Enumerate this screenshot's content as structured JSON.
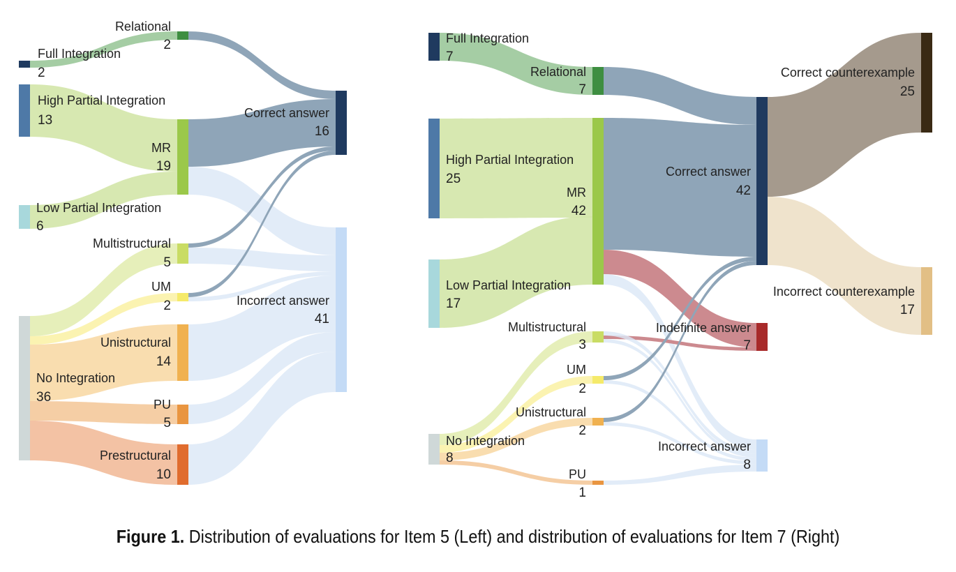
{
  "caption": {
    "prefix": "Figure 1.",
    "text": " Distribution of evaluations for Item 5 (Left) and distribution of evaluations for Item 7 (Right)"
  },
  "left": {
    "nodes": [
      {
        "id": "full",
        "label": "Full Integration",
        "value": "2",
        "color": "#1f3a5f"
      },
      {
        "id": "high",
        "label": "High Partial Integration",
        "value": "13",
        "color": "#4e79a7"
      },
      {
        "id": "low",
        "label": "Low Partial Integration",
        "value": "6",
        "color": "#a8d8dc"
      },
      {
        "id": "none",
        "label": "No Integration",
        "value": "36",
        "color": "#cfd8d8"
      },
      {
        "id": "relational",
        "label": "Relational",
        "value": "2",
        "color": "#3e8e41"
      },
      {
        "id": "mr",
        "label": "MR",
        "value": "19",
        "color": "#9bc84a"
      },
      {
        "id": "multi",
        "label": "Multistructural",
        "value": "5",
        "color": "#c9dc64"
      },
      {
        "id": "um",
        "label": "UM",
        "value": "2",
        "color": "#f5ea6a"
      },
      {
        "id": "uni",
        "label": "Unistructural",
        "value": "14",
        "color": "#f0b150"
      },
      {
        "id": "pu",
        "label": "PU",
        "value": "5",
        "color": "#e99540"
      },
      {
        "id": "pre",
        "label": "Prestructural",
        "value": "10",
        "color": "#e06c2e"
      },
      {
        "id": "correct",
        "label": "Correct answer",
        "value": "16",
        "color": "#1f3a5f"
      },
      {
        "id": "incorrect",
        "label": "Incorrect answer",
        "value": "41",
        "color": "#c4dbf6"
      }
    ]
  },
  "right": {
    "nodes": [
      {
        "id": "full",
        "label": "Full Integration",
        "value": "7",
        "color": "#1f3a5f"
      },
      {
        "id": "high",
        "label": "High Partial Integration",
        "value": "25",
        "color": "#4e79a7"
      },
      {
        "id": "low",
        "label": "Low Partial Integration",
        "value": "17",
        "color": "#a8d8dc"
      },
      {
        "id": "none",
        "label": "No Integration",
        "value": "8",
        "color": "#cfd8d8"
      },
      {
        "id": "relational",
        "label": "Relational",
        "value": "7",
        "color": "#3e8e41"
      },
      {
        "id": "mr",
        "label": "MR",
        "value": "42",
        "color": "#9bc84a"
      },
      {
        "id": "multi",
        "label": "Multistructural",
        "value": "3",
        "color": "#c9dc64"
      },
      {
        "id": "um",
        "label": "UM",
        "value": "2",
        "color": "#f5ea6a"
      },
      {
        "id": "uni",
        "label": "Unistructural",
        "value": "2",
        "color": "#f0b150"
      },
      {
        "id": "pu",
        "label": "PU",
        "value": "1",
        "color": "#e99540"
      },
      {
        "id": "correct",
        "label": "Correct answer",
        "value": "42",
        "color": "#1f3a5f"
      },
      {
        "id": "indef",
        "label": "Indefinite answer",
        "value": "7",
        "color": "#a82a2a"
      },
      {
        "id": "incorrect",
        "label": "Incorrect answer",
        "value": "8",
        "color": "#c4dbf6"
      },
      {
        "id": "cce",
        "label": "Correct counterexample",
        "value": "25",
        "color": "#3a2a14"
      },
      {
        "id": "ice",
        "label": "Incorrect counterexample",
        "value": "17",
        "color": "#e2bf85"
      }
    ]
  }
}
